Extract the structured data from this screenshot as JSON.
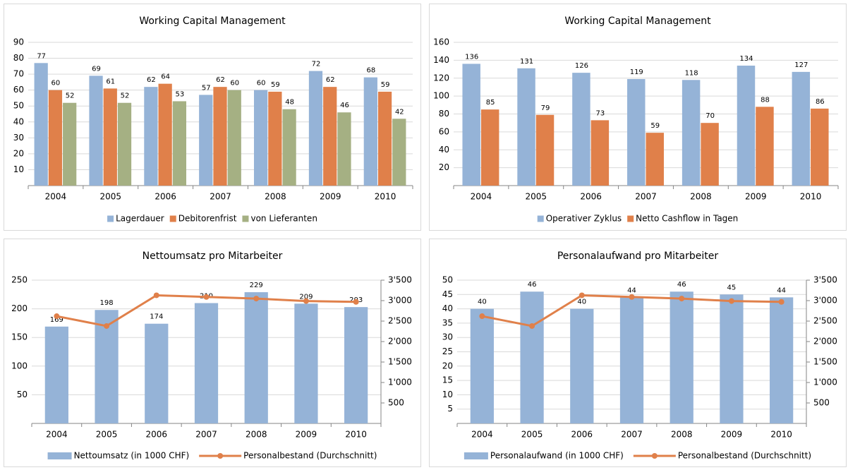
{
  "chart_data": [
    {
      "type": "bar",
      "title": "Working Capital Management",
      "categories": [
        "2004",
        "2005",
        "2006",
        "2007",
        "2008",
        "2009",
        "2010"
      ],
      "series": [
        {
          "name": "Lagerdauer",
          "color": "#95b3d7",
          "values": [
            77,
            69,
            62,
            57,
            60,
            72,
            68
          ]
        },
        {
          "name": "Debitorenfrist",
          "color": "#e0804a",
          "values": [
            60,
            61,
            64,
            62,
            59,
            62,
            59
          ]
        },
        {
          "name": "von Lieferanten",
          "color": "#a5b083",
          "values": [
            52,
            52,
            53,
            60,
            48,
            46,
            42
          ]
        }
      ],
      "ylim": [
        0,
        90
      ],
      "yticks": [
        10,
        20,
        30,
        40,
        50,
        60,
        70,
        80,
        90
      ],
      "grid": true,
      "legend": "bottom"
    },
    {
      "type": "bar",
      "title": "Working Capital Management",
      "categories": [
        "2004",
        "2005",
        "2006",
        "2007",
        "2008",
        "2009",
        "2010"
      ],
      "series": [
        {
          "name": "Operativer Zyklus",
          "color": "#95b3d7",
          "values": [
            136,
            131,
            126,
            119,
            118,
            134,
            127
          ]
        },
        {
          "name": "Netto Cashflow in Tagen",
          "color": "#e0804a",
          "values": [
            85,
            79,
            73,
            59,
            70,
            88,
            86
          ]
        }
      ],
      "ylim": [
        0,
        160
      ],
      "yticks": [
        20,
        40,
        60,
        80,
        100,
        120,
        140,
        160
      ],
      "grid": true,
      "legend": "bottom"
    },
    {
      "type": "combo",
      "title": "Nettoumsatz pro Mitarbeiter",
      "categories": [
        "2004",
        "2005",
        "2006",
        "2007",
        "2008",
        "2009",
        "2010"
      ],
      "series": [
        {
          "name": "Nettoumsatz (in 1000 CHF)",
          "color": "#95b3d7",
          "values": [
            169,
            198,
            174,
            210,
            229,
            209,
            203
          ]
        },
        {
          "name": "Personalbestand (Durchschnitt)",
          "color": "#e0804a",
          "axis": "y2",
          "values": [
            2620,
            2380,
            3130,
            3090,
            3050,
            2990,
            2970
          ]
        }
      ],
      "ylim": [
        0,
        250
      ],
      "yticks": [
        50,
        100,
        150,
        200,
        250
      ],
      "y2lim": [
        0,
        3500
      ],
      "y2ticks": [
        500,
        {
          "value": 1000,
          "label": "1'000"
        },
        {
          "value": 1500,
          "label": "1'500"
        },
        {
          "value": 2000,
          "label": "2'000"
        },
        {
          "value": 2500,
          "label": "2'500"
        },
        {
          "value": 3000,
          "label": "3'000"
        },
        {
          "value": 3500,
          "label": "3'500"
        }
      ],
      "grid": true,
      "legend": "bottom"
    },
    {
      "type": "combo",
      "title": "Personalaufwand pro Mitarbeiter",
      "categories": [
        "2004",
        "2005",
        "2006",
        "2007",
        "2008",
        "2009",
        "2010"
      ],
      "series": [
        {
          "name": "Personalaufwand (in 1000 CHF)",
          "color": "#95b3d7",
          "values": [
            40,
            46,
            40,
            44,
            46,
            45,
            44
          ]
        },
        {
          "name": "Personalbestand (Durchschnitt)",
          "color": "#e0804a",
          "axis": "y2",
          "values": [
            2620,
            2380,
            3130,
            3090,
            3050,
            2990,
            2970
          ]
        }
      ],
      "ylim": [
        0,
        50
      ],
      "yticks": [
        5,
        10,
        15,
        20,
        25,
        30,
        35,
        40,
        45,
        50
      ],
      "y2lim": [
        0,
        3500
      ],
      "y2ticks": [
        500,
        {
          "value": 1000,
          "label": "1'000"
        },
        {
          "value": 1500,
          "label": "1'500"
        },
        {
          "value": 2000,
          "label": "2'000"
        },
        {
          "value": 2500,
          "label": "2'500"
        },
        {
          "value": 3000,
          "label": "3'000"
        },
        {
          "value": 3500,
          "label": "3'500"
        }
      ],
      "grid": true,
      "legend": "bottom"
    }
  ]
}
